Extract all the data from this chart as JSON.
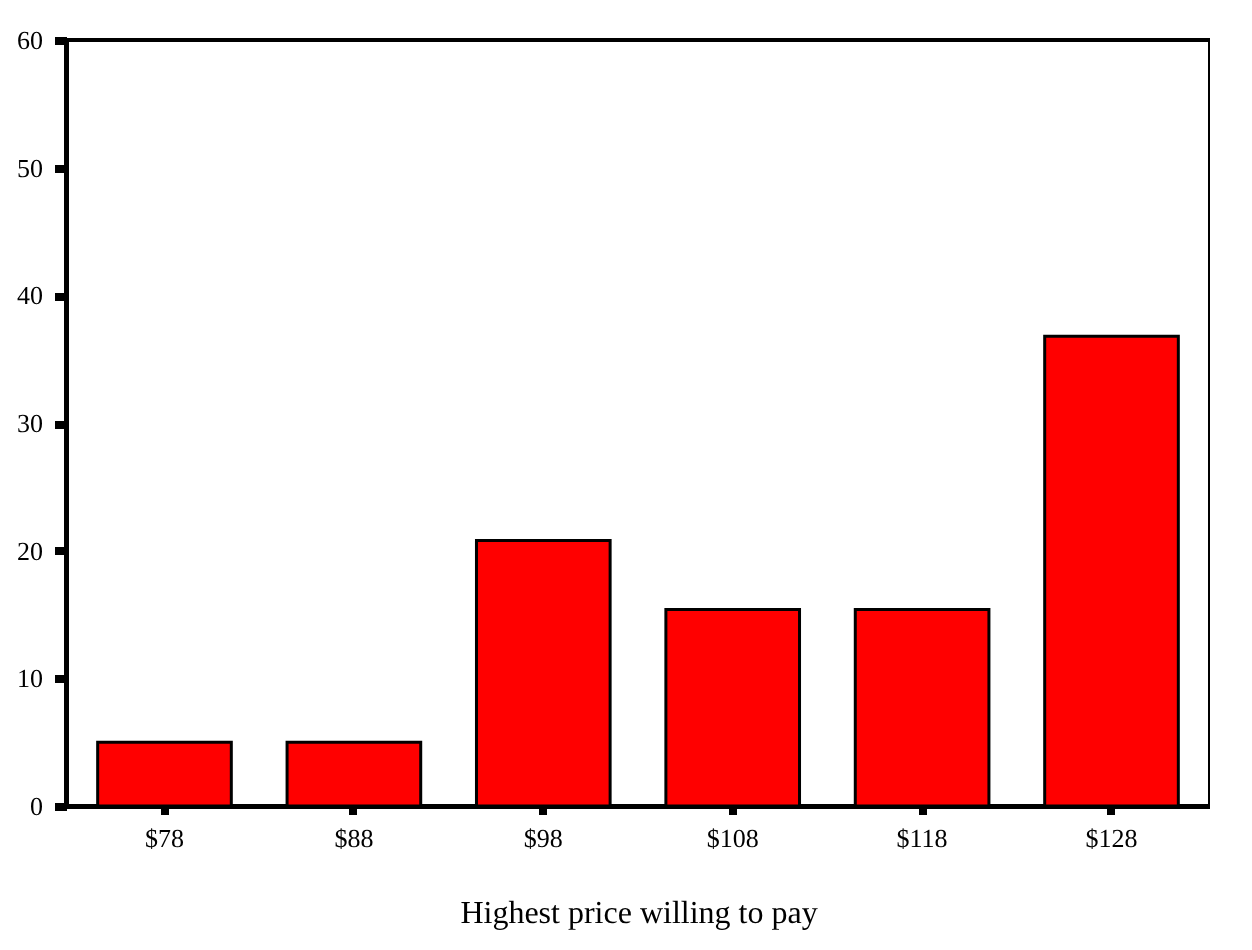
{
  "chart_data": {
    "type": "bar",
    "xlabel": "Highest price willing to pay",
    "categories": [
      "$78",
      "$88",
      "$98",
      "$108",
      "$118",
      "$128"
    ],
    "values": [
      5.0,
      5.0,
      20.8,
      15.4,
      15.4,
      36.8
    ],
    "color": "#ff0000",
    "ylim": [
      0,
      60
    ],
    "yticks": [
      0,
      10,
      20,
      30,
      40,
      50,
      60
    ],
    "grid": false
  }
}
